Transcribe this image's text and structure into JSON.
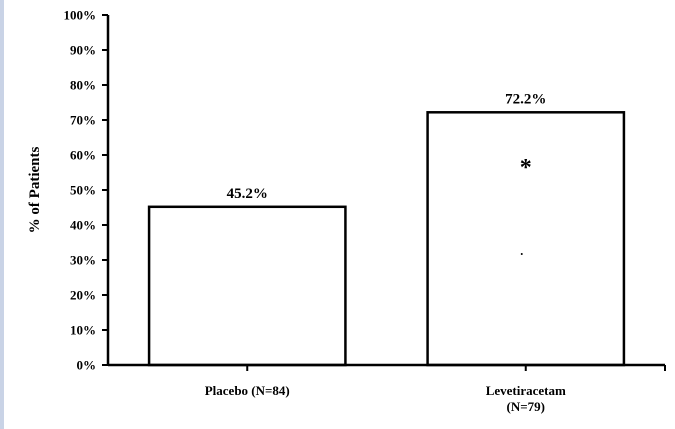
{
  "chart_data": {
    "type": "bar",
    "ylabel": "% of Patients",
    "ylim": [
      0,
      100
    ],
    "yticks": [
      0,
      10,
      20,
      30,
      40,
      50,
      60,
      70,
      80,
      90,
      100
    ],
    "ytick_suffix": "%",
    "categories": [
      [
        "Placebo (N=84)"
      ],
      [
        "Levetiracetam",
        "(N=79)"
      ]
    ],
    "values": [
      45.2,
      72.2
    ],
    "value_labels": [
      "45.2%",
      "72.2%"
    ],
    "annotations": [
      {
        "category_index": 1,
        "text": "*"
      }
    ],
    "bar_fill": "#ffffff",
    "bar_stroke": "#000000",
    "grid": false
  }
}
